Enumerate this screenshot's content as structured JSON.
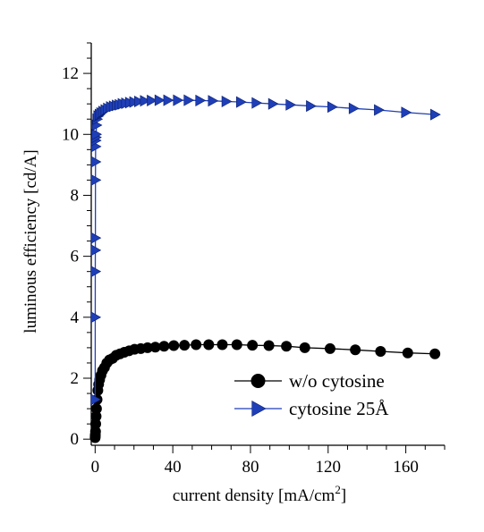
{
  "chart_data": {
    "type": "line",
    "xlabel": "current density [mA/cm",
    "xlabel_sup": "2",
    "xlabel_end": "]",
    "ylabel": "luminous efficiency [cd/A]",
    "xlim": [
      -2,
      180
    ],
    "ylim": [
      -0.2,
      13
    ],
    "x_ticks": [
      0,
      40,
      80,
      120,
      160
    ],
    "x_tick_labels": [
      "0",
      "40",
      "80",
      "120",
      "160"
    ],
    "y_ticks": [
      0,
      2,
      4,
      6,
      8,
      10,
      12
    ],
    "y_tick_labels": [
      "0",
      "2",
      "4",
      "6",
      "8",
      "10",
      "12"
    ],
    "grid": false,
    "legend_position": "bottom-right",
    "series": [
      {
        "name": "w/o cytosine",
        "color": "#000000",
        "marker": "circle",
        "x": [
          0.02,
          0.05,
          0.1,
          0.2,
          0.3,
          0.5,
          0.7,
          1.0,
          1.4,
          1.8,
          2.3,
          3.0,
          3.8,
          4.8,
          6.0,
          7.4,
          9.0,
          10.8,
          12.8,
          15.0,
          17.5,
          20.3,
          23.5,
          27.0,
          31.0,
          35.5,
          40.5,
          46.0,
          52.0,
          58.5,
          65.5,
          73.0,
          81.0,
          89.5,
          98.5,
          108.0,
          121.0,
          134.0,
          147.0,
          161.0,
          175.0
        ],
        "y": [
          0.05,
          0.1,
          0.15,
          0.25,
          0.5,
          0.75,
          1.0,
          1.3,
          1.6,
          1.8,
          1.95,
          2.1,
          2.25,
          2.35,
          2.5,
          2.6,
          2.65,
          2.75,
          2.8,
          2.85,
          2.9,
          2.95,
          2.97,
          3.0,
          3.02,
          3.05,
          3.07,
          3.08,
          3.1,
          3.1,
          3.1,
          3.1,
          3.08,
          3.07,
          3.05,
          3.0,
          2.97,
          2.93,
          2.88,
          2.83,
          2.8
        ]
      },
      {
        "name": "cytosine 25Å",
        "color": "#1f3fb8",
        "marker": "triangle-right",
        "x": [
          0.03,
          0.05,
          0.07,
          0.1,
          0.13,
          0.16,
          0.2,
          0.25,
          0.3,
          0.4,
          0.5,
          0.7,
          1.0,
          1.5,
          2.2,
          3.0,
          4.0,
          5.2,
          6.5,
          8.0,
          9.5,
          11.0,
          12.5,
          14.0,
          15.8,
          17.8,
          20.0,
          22.5,
          25.5,
          29.0,
          33.0,
          37.5,
          42.5,
          48.0,
          54.0,
          60.5,
          67.5,
          75.0,
          83.0,
          91.5,
          100.5,
          111.0,
          122.0,
          133.0,
          146.0,
          160.0,
          175.0
        ],
        "y": [
          1.3,
          4.0,
          5.5,
          6.2,
          6.6,
          8.5,
          9.1,
          9.6,
          9.8,
          9.9,
          10.0,
          10.3,
          10.5,
          10.6,
          10.65,
          10.7,
          10.75,
          10.8,
          10.85,
          10.9,
          10.92,
          10.95,
          10.97,
          11.0,
          11.02,
          11.04,
          11.06,
          11.08,
          11.1,
          11.11,
          11.12,
          11.12,
          11.12,
          11.12,
          11.11,
          11.1,
          11.08,
          11.06,
          11.03,
          11.0,
          10.97,
          10.93,
          10.9,
          10.85,
          10.8,
          10.72,
          10.65
        ]
      }
    ]
  }
}
